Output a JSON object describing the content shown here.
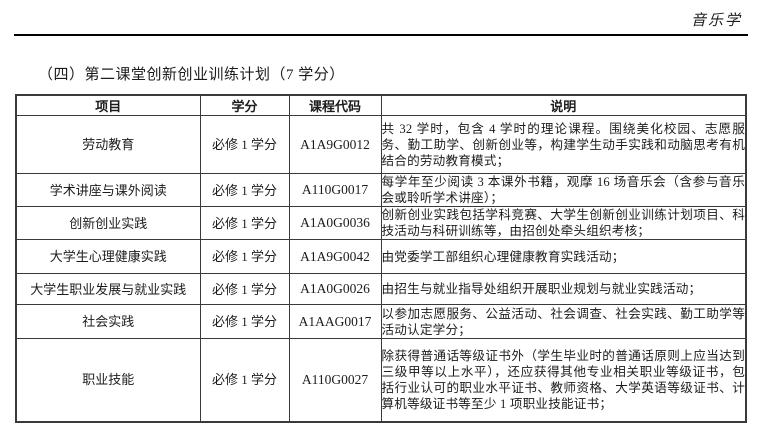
{
  "page": {
    "header_right": "音乐学",
    "title": "（四）第二课堂创新创业训练计划（7 学分）"
  },
  "table": {
    "columns": [
      "项目",
      "学分",
      "课程代码",
      "说明"
    ],
    "rows": [
      {
        "project": "劳动教育",
        "credit": "必修 1 学分",
        "code": "A1A9G0012",
        "description": "共 32 学时，包含 4 学时的理论课程。围绕美化校园、志愿服务、勤工助学、创新创业等，构建学生动手实践和动脑思考有机结合的劳动教育模式；"
      },
      {
        "project": "学术讲座与课外阅读",
        "credit": "必修 1 学分",
        "code": "A110G0017",
        "description": "每学年至少阅读 3 本课外书籍，观摩 16 场音乐会（含参与音乐会或聆听学术讲座）；"
      },
      {
        "project": "创新创业实践",
        "credit": "必修 1 学分",
        "code": "A1A0G0036",
        "description": "创新创业实践包括学科竞赛、大学生创新创业训练计划项目、科技活动与科研训练等，由招创处牵头组织考核；"
      },
      {
        "project": "大学生心理健康实践",
        "credit": "必修 1 学分",
        "code": "A1A9G0042",
        "description": "由党委学工部组织心理健康教育实践活动；"
      },
      {
        "project": "大学生职业发展与就业实践",
        "credit": "必修 1 学分",
        "code": "A1A0G0026",
        "description": "由招生与就业指导处组织开展职业规划与就业实践活动；"
      },
      {
        "project": "社会实践",
        "credit": "必修 1 学分",
        "code": "A1AAG0017",
        "description": "以参加志愿服务、公益活动、社会调查、社会实践、勤工助学等活动认定学分；"
      },
      {
        "project": "职业技能",
        "credit": "必修 1 学分",
        "code": "A110G0027",
        "description": "除获得普通话等级证书外（学生毕业时的普通话原则上应当达到三级甲等以上水平），还应获得其他专业相关职业等级证书，包括行业认可的职业水平证书、教师资格、大学英语等级证书、计算机等级证书等至少 1 项职业技能证书；"
      }
    ]
  },
  "colors": {
    "background": "#ffffff",
    "text": "#1c1c1c",
    "border": "#3a3a3a",
    "rule": "#000000"
  }
}
